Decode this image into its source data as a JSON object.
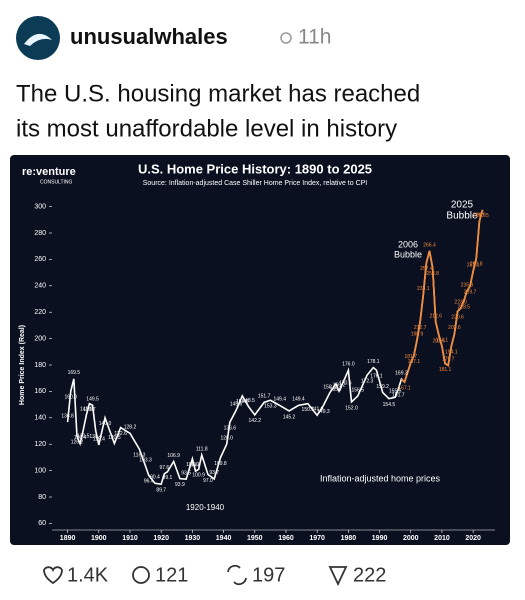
{
  "post": {
    "username": "unusualwhales",
    "time": "11h",
    "text_lines": [
      "The U.S. housing market has reached",
      "its most unaffordable level in history"
    ],
    "stats": {
      "likes": "1.4K",
      "replies": "121",
      "reposts": "197",
      "views": "222"
    }
  },
  "chart_data": {
    "type": "line",
    "brand": "re:venture",
    "brand_sub": "CONSULTING",
    "title": "U.S. Home Price History: 1890 to 2025",
    "subtitle": "Source: Inflation-adjusted Case Shiller Home Price Index, relative to CPI",
    "y_label": "Home Price Index (Real)",
    "annotations": {
      "bubble_2006": [
        "2006",
        "Bubble"
      ],
      "bubble_2025": [
        "2025",
        "Bubble"
      ],
      "period": "1920-1940",
      "series_note": "Inflation-adjusted home prices"
    },
    "x": [
      1890,
      1891,
      1892,
      1893,
      1894,
      1895,
      1896,
      1897,
      1898,
      1899,
      1900,
      1902,
      1905,
      1907,
      1910,
      1913,
      1915,
      1916,
      1918,
      1920,
      1921,
      1922,
      1924,
      1926,
      1928,
      1930,
      1931,
      1932,
      1933,
      1935,
      1937,
      1939,
      1941,
      1942,
      1944,
      1946,
      1948,
      1950,
      1953,
      1955,
      1958,
      1961,
      1964,
      1967,
      1970,
      1972,
      1974,
      1976,
      1977,
      1979,
      1980,
      1981,
      1983,
      1986,
      1988,
      1989,
      1991,
      1993,
      1995,
      1996,
      1997,
      1998,
      2000,
      2001,
      2002,
      2003,
      2004,
      2005,
      2006,
      2007,
      2008,
      2009,
      2010,
      2011,
      2012,
      2013,
      2014,
      2015,
      2016,
      2017,
      2018,
      2019,
      2020,
      2021,
      2022,
      2023
    ],
    "values": [
      136.8,
      160.0,
      169.5,
      126.2,
      120.4,
      130.5,
      142.0,
      150.7,
      149.5,
      130.4,
      119.4,
      140.0,
      120.5,
      132.6,
      128.2,
      116.3,
      103.3,
      96.4,
      90.4,
      89.7,
      97.6,
      99.1,
      106.9,
      93.9,
      93.5,
      109.0,
      99.6,
      100.9,
      111.8,
      97.0,
      93.7,
      109.8,
      120.0,
      136.6,
      145.6,
      156.6,
      148.5,
      142.2,
      151.7,
      153.3,
      149.4,
      145.2,
      149.4,
      150.7,
      141.9,
      149.3,
      158.8,
      165.7,
      160.2,
      170.6,
      176.0,
      152.0,
      156.5,
      172.3,
      178.1,
      176.1,
      159.2,
      154.5,
      155.5,
      161.7,
      169.3,
      167.1,
      181.7,
      187.1,
      198.9,
      212.7,
      233.1,
      257.4,
      266.4,
      253.8,
      212.6,
      202.6,
      194.1,
      181.1,
      179.7,
      194.1,
      203.6,
      220.6,
      223.0,
      228.5,
      235.9,
      239.7,
      251.1,
      260.8,
      288.9,
      297.5
    ],
    "value_labels": [
      "136.8",
      "160.0",
      "169.5",
      "126.2",
      "120.4",
      "130.5",
      "142.0",
      "150.7",
      "149.5",
      "130.4",
      "119.4",
      "140.0",
      "120.5",
      "132.6",
      "128.2",
      "116.3",
      "103.3",
      "96.4",
      "90.4",
      "89.7",
      "97.6",
      "99.1",
      "106.9",
      "93.9",
      "93.5",
      "109.0",
      "99.6",
      "100.9",
      "111.8",
      "97.0",
      "93.7",
      "109.8",
      "120.0",
      "136.6",
      "145.6",
      "156.6",
      "148.5",
      "142.2",
      "151.7",
      "153.3",
      "149.4",
      "145.2",
      "149.4",
      "150.7",
      "141.9",
      "149.3",
      "158.8",
      "165.7",
      "160.2",
      "170.6",
      "176.0",
      "152.0",
      "156.5",
      "172.3",
      "178.1",
      "176.1",
      "159.2",
      "154.5",
      "155.5",
      "161.7",
      "169.3",
      "167.1",
      "181.7",
      "187.1",
      "198.9",
      "212.7",
      "233.1",
      "257.4",
      "266.4",
      "253.8",
      "212.6",
      "202.6",
      "194.1",
      "181.1",
      "179.7",
      "194.1",
      "203.6",
      "220.6",
      "223.0",
      "228.5",
      "235.9",
      "239.7",
      "251.1",
      "260.8",
      "288.9",
      "297.5"
    ],
    "color": "#ffffff",
    "accent_color": "#f08a3c",
    "accent_from": 1998,
    "xlim": [
      1885,
      2027
    ],
    "xticks": [
      1890,
      1900,
      1910,
      1920,
      1930,
      1940,
      1950,
      1960,
      1970,
      1980,
      1990,
      2000,
      2010,
      2020
    ],
    "ylim": [
      55,
      305
    ],
    "yticks": [
      60,
      80,
      100,
      120,
      140,
      160,
      180,
      200,
      220,
      240,
      260,
      280,
      300
    ]
  }
}
